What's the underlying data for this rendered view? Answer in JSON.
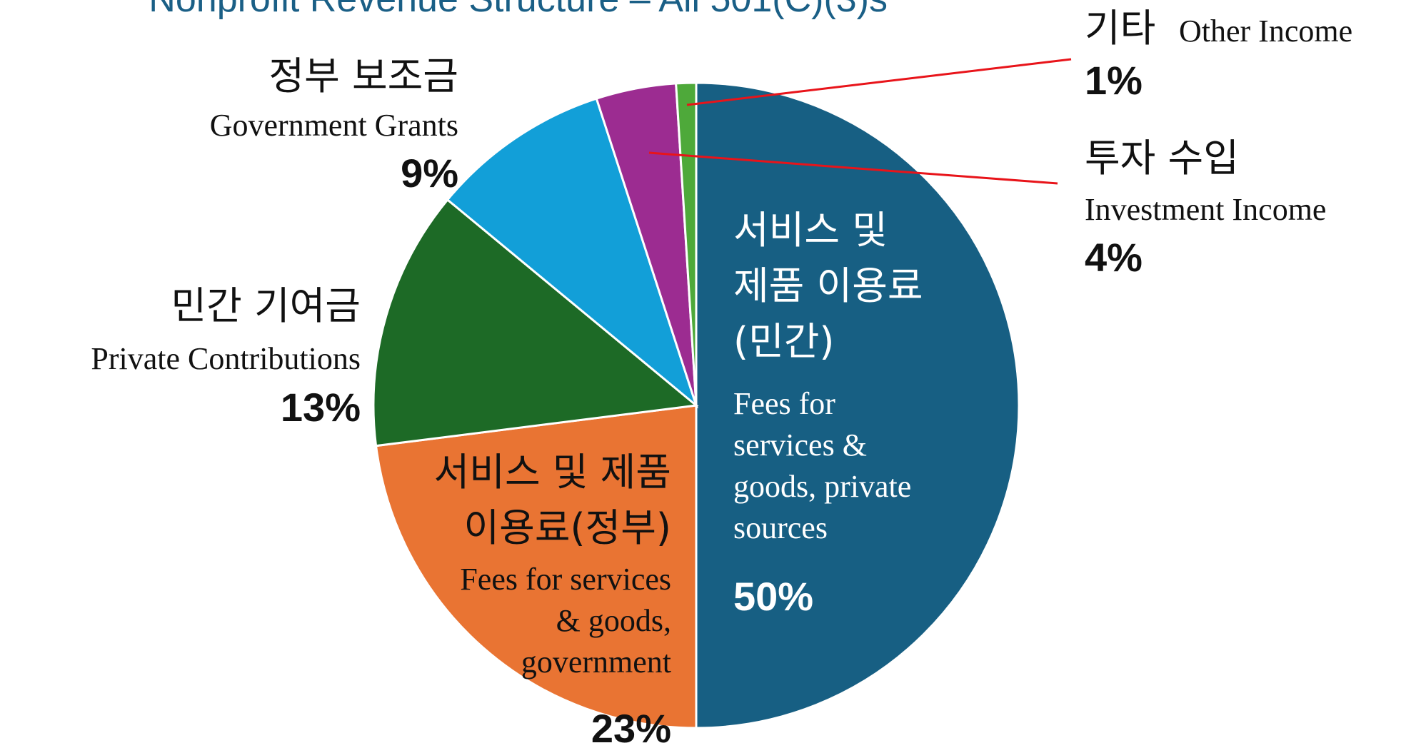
{
  "chart_data": {
    "type": "pie",
    "title": "Nonprofit Revenue Structure – All 501(C)(3)s",
    "categories": [
      "서비스 및\n제품 이용료\n(민간)",
      "서비스 및 제품\n이용료(정부)",
      "민간 기여금",
      "정부 보조금",
      "투자 수입",
      "기타"
    ],
    "categories_en": [
      "Fees for\nservices &\ngoods, private\nsources",
      "Fees for services\n& goods,\ngovernment",
      "Private Contributions",
      "Government Grants",
      "Investment Income",
      "Other Income"
    ],
    "values": [
      50,
      23,
      13,
      9,
      4,
      1
    ],
    "value_labels": [
      "50%",
      "23%",
      "13%",
      "9%",
      "4%",
      "1%"
    ],
    "colors": [
      "#175f83",
      "#e97433",
      "#1d6a26",
      "#129fd8",
      "#9c2c91",
      "#4ea93a"
    ]
  }
}
